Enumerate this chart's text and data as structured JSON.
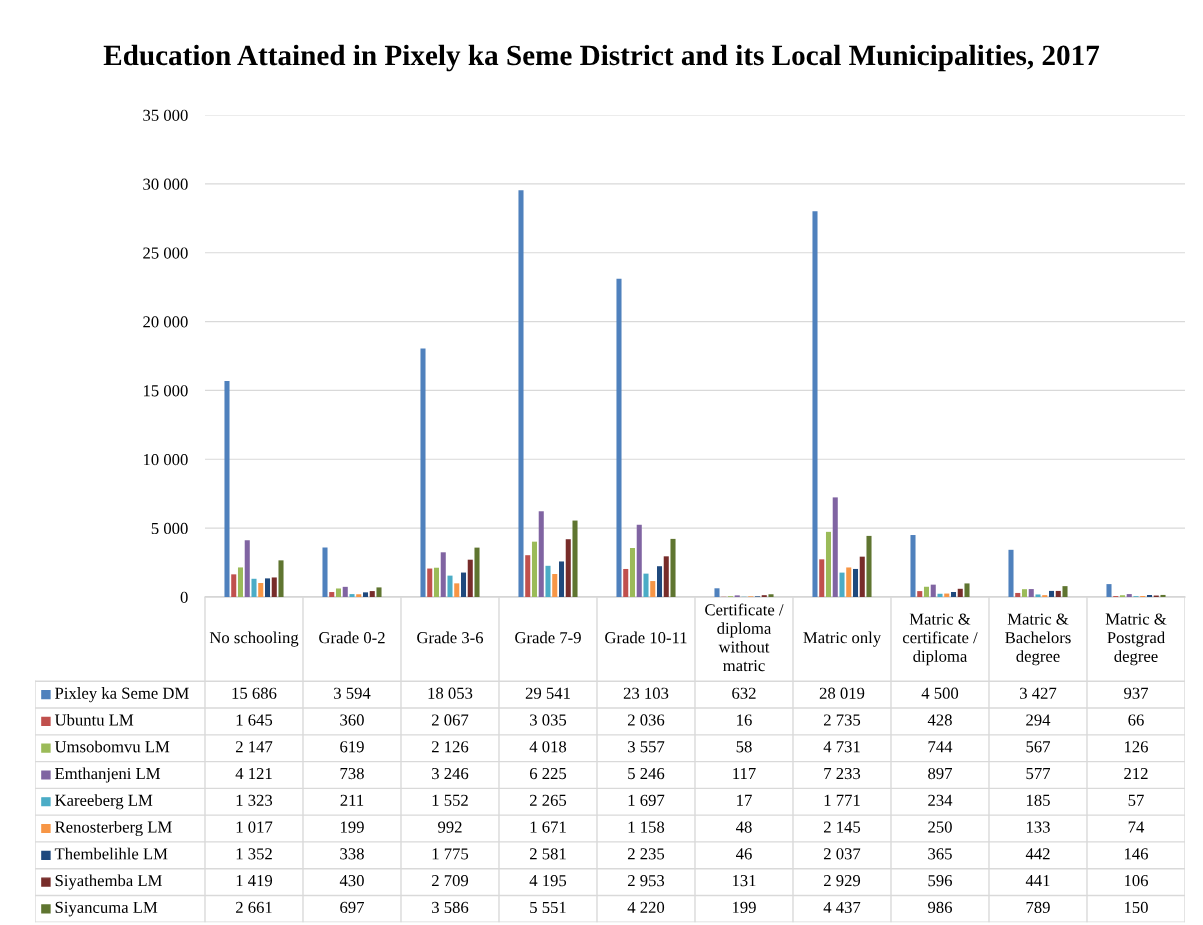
{
  "chart_data": {
    "type": "bar",
    "title": "Education Attained in Pixely ka Seme District and its Local Municipalities, 2017",
    "categories": [
      "No schooling",
      "Grade 0-2",
      "Grade 3-6",
      "Grade 7-9",
      "Grade 10-11",
      "Certificate / diploma without matric",
      "Matric only",
      "Matric & certificate / diploma",
      "Matric & Bachelors degree",
      "Matric & Postgrad degree"
    ],
    "series": [
      {
        "name": "Pixley ka Seme DM",
        "color": "#4f81bd",
        "values": [
          15686,
          3594,
          18053,
          29541,
          23103,
          632,
          28019,
          4500,
          3427,
          937
        ]
      },
      {
        "name": "Ubuntu LM",
        "color": "#c0504d",
        "values": [
          1645,
          360,
          2067,
          3035,
          2036,
          16,
          2735,
          428,
          294,
          66
        ]
      },
      {
        "name": "Umsobomvu LM",
        "color": "#9bbb59",
        "values": [
          2147,
          619,
          2126,
          4018,
          3557,
          58,
          4731,
          744,
          567,
          126
        ]
      },
      {
        "name": "Emthanjeni LM",
        "color": "#8064a2",
        "values": [
          4121,
          738,
          3246,
          6225,
          5246,
          117,
          7233,
          897,
          577,
          212
        ]
      },
      {
        "name": "Kareeberg LM",
        "color": "#4bacc6",
        "values": [
          1323,
          211,
          1552,
          2265,
          1697,
          17,
          1771,
          234,
          185,
          57
        ]
      },
      {
        "name": "Renosterberg LM",
        "color": "#f79646",
        "values": [
          1017,
          199,
          992,
          1671,
          1158,
          48,
          2145,
          250,
          133,
          74
        ]
      },
      {
        "name": "Thembelihle LM",
        "color": "#1f497d",
        "values": [
          1352,
          338,
          1775,
          2581,
          2235,
          46,
          2037,
          365,
          442,
          146
        ]
      },
      {
        "name": "Siyathemba LM",
        "color": "#772c2a",
        "values": [
          1419,
          430,
          2709,
          4195,
          2953,
          131,
          2929,
          596,
          441,
          106
        ]
      },
      {
        "name": "Siyancuma LM",
        "color": "#5f7530",
        "values": [
          2661,
          697,
          3586,
          5551,
          4220,
          199,
          4437,
          986,
          789,
          150
        ]
      }
    ],
    "ylim": [
      0,
      35000
    ],
    "yticks": [
      0,
      {
        "value": 5000,
        "label": "5 000"
      },
      {
        "value": 10000,
        "label": "10 000"
      },
      {
        "value": 15000,
        "label": "15 000"
      },
      {
        "value": 20000,
        "label": "20 000"
      },
      {
        "value": 25000,
        "label": "25 000"
      },
      {
        "value": 30000,
        "label": "30 000"
      },
      {
        "value": 35000,
        "label": "35 000"
      }
    ],
    "grid": "y",
    "legend": "bottom",
    "data_labels": true
  }
}
